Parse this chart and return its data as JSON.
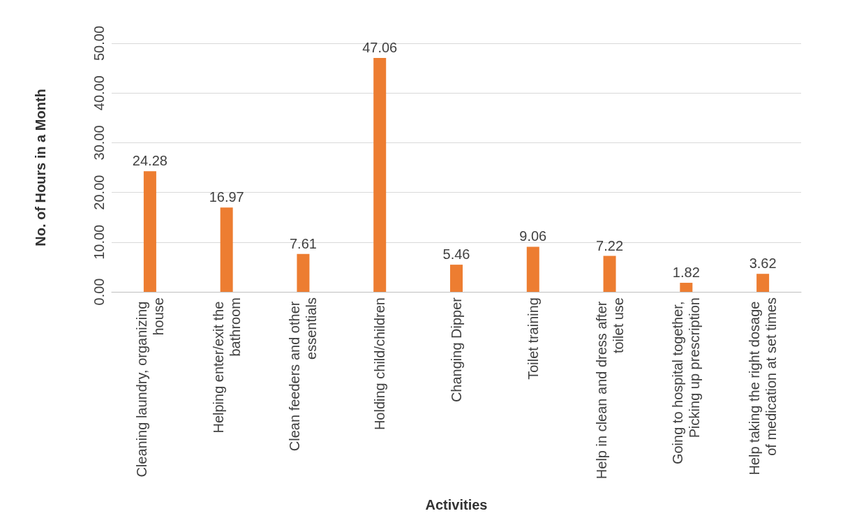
{
  "chart_data": {
    "type": "bar",
    "xlabel": "Activities",
    "ylabel": "No. of Hours in a Month",
    "categories": [
      "Cleaning laundry, organizing house",
      "Helping enter/exit the bathroom",
      "Clean feeders and other essentials",
      "Holding child/children",
      "Changing Dipper",
      "Toilet training",
      "Help in clean and dress after toilet use",
      "Going to hospital together, Picking up prescription",
      "Help taking the right dosage of medication at set times"
    ],
    "values": [
      24.28,
      16.97,
      7.61,
      47.06,
      5.46,
      9.06,
      7.22,
      1.82,
      3.62
    ],
    "color": "#ed7d31",
    "ylim": [
      0,
      50
    ],
    "yticks": [
      {
        "value": 0,
        "label": "0.00"
      },
      {
        "value": 10,
        "label": "10.00"
      },
      {
        "value": 20,
        "label": "20.00"
      },
      {
        "value": 30,
        "label": "30.00"
      },
      {
        "value": 40,
        "label": "40.00"
      },
      {
        "value": 50,
        "label": "50.00"
      }
    ],
    "grid": "y",
    "data_labels": true
  }
}
